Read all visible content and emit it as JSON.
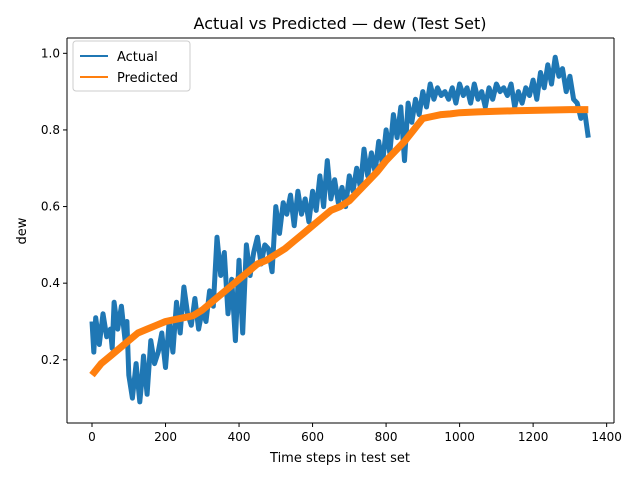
{
  "chart_data": {
    "type": "line",
    "title": "Actual vs Predicted — dew (Test Set)",
    "xlabel": "Time steps in test set",
    "ylabel": "dew",
    "xlim": [
      -68,
      1420
    ],
    "ylim": [
      0.035,
      1.04
    ],
    "xticks": [
      0,
      200,
      400,
      600,
      800,
      1000,
      1200,
      1400
    ],
    "yticks": [
      0.2,
      0.4,
      0.6,
      0.8,
      1.0
    ],
    "xtick_labels": [
      "0",
      "200",
      "400",
      "600",
      "800",
      "1000",
      "1200",
      "1400"
    ],
    "ytick_labels": [
      "0.2",
      "0.4",
      "0.6",
      "0.8",
      "1.0"
    ],
    "grid": false,
    "legend_position": "top-left",
    "series": [
      {
        "name": "Actual",
        "color": "#1f77b4",
        "x": [
          0,
          5,
          10,
          20,
          30,
          40,
          50,
          55,
          60,
          70,
          80,
          90,
          95,
          100,
          110,
          120,
          130,
          135,
          140,
          150,
          160,
          170,
          180,
          190,
          200,
          210,
          220,
          230,
          240,
          250,
          260,
          270,
          280,
          290,
          300,
          310,
          320,
          330,
          340,
          350,
          360,
          370,
          380,
          390,
          400,
          410,
          420,
          430,
          440,
          450,
          460,
          470,
          480,
          490,
          500,
          510,
          520,
          530,
          540,
          550,
          560,
          570,
          580,
          590,
          600,
          610,
          620,
          630,
          640,
          650,
          660,
          670,
          680,
          690,
          700,
          710,
          720,
          730,
          740,
          750,
          760,
          770,
          780,
          790,
          800,
          810,
          820,
          830,
          840,
          850,
          860,
          870,
          880,
          890,
          900,
          910,
          920,
          930,
          940,
          950,
          960,
          970,
          980,
          990,
          1000,
          1010,
          1020,
          1030,
          1040,
          1050,
          1060,
          1070,
          1080,
          1090,
          1100,
          1110,
          1120,
          1130,
          1140,
          1150,
          1160,
          1170,
          1180,
          1190,
          1200,
          1210,
          1220,
          1230,
          1240,
          1250,
          1260,
          1270,
          1280,
          1290,
          1300,
          1310,
          1320,
          1330,
          1340,
          1350
        ],
        "y": [
          0.3,
          0.22,
          0.31,
          0.24,
          0.32,
          0.26,
          0.28,
          0.23,
          0.35,
          0.28,
          0.34,
          0.25,
          0.3,
          0.16,
          0.1,
          0.19,
          0.09,
          0.14,
          0.21,
          0.11,
          0.25,
          0.19,
          0.22,
          0.27,
          0.18,
          0.3,
          0.22,
          0.35,
          0.27,
          0.39,
          0.32,
          0.29,
          0.36,
          0.28,
          0.33,
          0.3,
          0.38,
          0.34,
          0.52,
          0.42,
          0.48,
          0.32,
          0.41,
          0.25,
          0.46,
          0.27,
          0.5,
          0.42,
          0.48,
          0.52,
          0.45,
          0.5,
          0.49,
          0.43,
          0.6,
          0.53,
          0.61,
          0.58,
          0.63,
          0.55,
          0.64,
          0.58,
          0.62,
          0.56,
          0.64,
          0.59,
          0.68,
          0.6,
          0.72,
          0.62,
          0.67,
          0.61,
          0.65,
          0.6,
          0.68,
          0.64,
          0.7,
          0.65,
          0.75,
          0.68,
          0.74,
          0.69,
          0.77,
          0.71,
          0.8,
          0.74,
          0.84,
          0.78,
          0.86,
          0.72,
          0.87,
          0.82,
          0.88,
          0.84,
          0.9,
          0.86,
          0.92,
          0.88,
          0.91,
          0.89,
          0.9,
          0.88,
          0.91,
          0.87,
          0.92,
          0.89,
          0.91,
          0.87,
          0.92,
          0.88,
          0.9,
          0.86,
          0.91,
          0.88,
          0.92,
          0.9,
          0.91,
          0.89,
          0.92,
          0.86,
          0.9,
          0.87,
          0.91,
          0.89,
          0.93,
          0.88,
          0.95,
          0.91,
          0.97,
          0.92,
          0.99,
          0.94,
          0.96,
          0.9,
          0.94,
          0.88,
          0.87,
          0.83,
          0.85,
          0.78
        ]
      },
      {
        "name": "Predicted",
        "color": "#ff7f0e",
        "x": [
          0,
          25,
          50,
          75,
          100,
          125,
          150,
          175,
          200,
          225,
          250,
          275,
          300,
          325,
          350,
          375,
          400,
          425,
          450,
          475,
          500,
          525,
          550,
          575,
          600,
          625,
          650,
          675,
          700,
          725,
          750,
          775,
          800,
          825,
          850,
          875,
          900,
          925,
          950,
          975,
          1000,
          1050,
          1100,
          1150,
          1200,
          1250,
          1300,
          1350
        ],
        "y": [
          0.16,
          0.19,
          0.21,
          0.23,
          0.25,
          0.27,
          0.28,
          0.29,
          0.3,
          0.305,
          0.31,
          0.315,
          0.33,
          0.35,
          0.37,
          0.39,
          0.41,
          0.43,
          0.45,
          0.46,
          0.475,
          0.49,
          0.51,
          0.53,
          0.55,
          0.57,
          0.59,
          0.6,
          0.615,
          0.64,
          0.665,
          0.69,
          0.72,
          0.745,
          0.77,
          0.8,
          0.83,
          0.835,
          0.84,
          0.842,
          0.845,
          0.847,
          0.849,
          0.85,
          0.851,
          0.852,
          0.853,
          0.853
        ]
      }
    ]
  }
}
